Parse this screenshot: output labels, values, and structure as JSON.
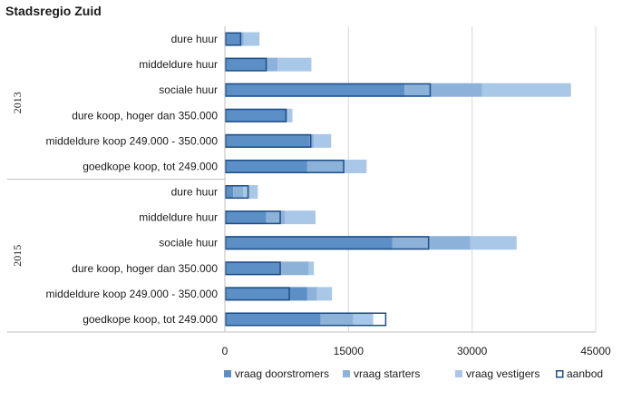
{
  "chart_data": {
    "type": "bar",
    "orientation": "horizontal",
    "title": "Stadsregio Zuid",
    "xlabel": "",
    "ylabel": "",
    "xlim": [
      0,
      45000
    ],
    "xticks": [
      0,
      15000,
      30000,
      45000
    ],
    "tick_labels": [
      "0",
      "15000",
      "30000",
      "45000"
    ],
    "grid": true,
    "legend_position": "bottom",
    "stacked": true,
    "groups": [
      {
        "name": "2013",
        "categories": [
          "dure huur",
          "middeldure huur",
          "sociale huur",
          "dure koop, hoger dan 350.000",
          "middeldure koop 249.000 - 350.000",
          "goedkope koop, tot 249.000"
        ],
        "series": [
          {
            "name": "vraag doorstromers",
            "values": [
              2000,
              5100,
              21800,
              7400,
              10300,
              10000
            ]
          },
          {
            "name": "vraag starters",
            "values": [
              300,
              1300,
              9400,
              200,
              500,
              4500
            ]
          },
          {
            "name": "vraag vestigers",
            "values": [
              1900,
              4100,
              10800,
              600,
              2100,
              2700
            ]
          }
        ],
        "aanbod": [
          2000,
          5100,
          25000,
          7500,
          10500,
          14500
        ]
      },
      {
        "name": "2015",
        "categories": [
          "dure huur",
          "middeldure huur",
          "sociale huur",
          "dure koop, hoger dan 350.000",
          "middeldure koop 249.000 - 350.000",
          "goedkope koop, tot 249.000"
        ],
        "series": [
          {
            "name": "vraag doorstromers",
            "values": [
              1000,
              5000,
              20300,
              6700,
              10000,
              11600
            ]
          },
          {
            "name": "vraag starters",
            "values": [
              1200,
              2300,
              9500,
              3500,
              1200,
              4000
            ]
          },
          {
            "name": "vraag vestigers",
            "values": [
              1800,
              3700,
              5600,
              600,
              1800,
              2400
            ]
          }
        ],
        "aanbod": [
          2900,
          6800,
          24800,
          6800,
          7900,
          19600
        ]
      }
    ],
    "legend": [
      "vraag doorstromers",
      "vraag starters",
      "vraag vestigers",
      "aanbod"
    ],
    "colors": {
      "vraag doorstromers": "#5b8fc6",
      "vraag starters": "#8cb2d9",
      "vraag vestigers": "#a9c7e6",
      "aanbod": "#1f4e86",
      "grid": "#d9d9d9",
      "divider": "#bfbfbf"
    }
  }
}
